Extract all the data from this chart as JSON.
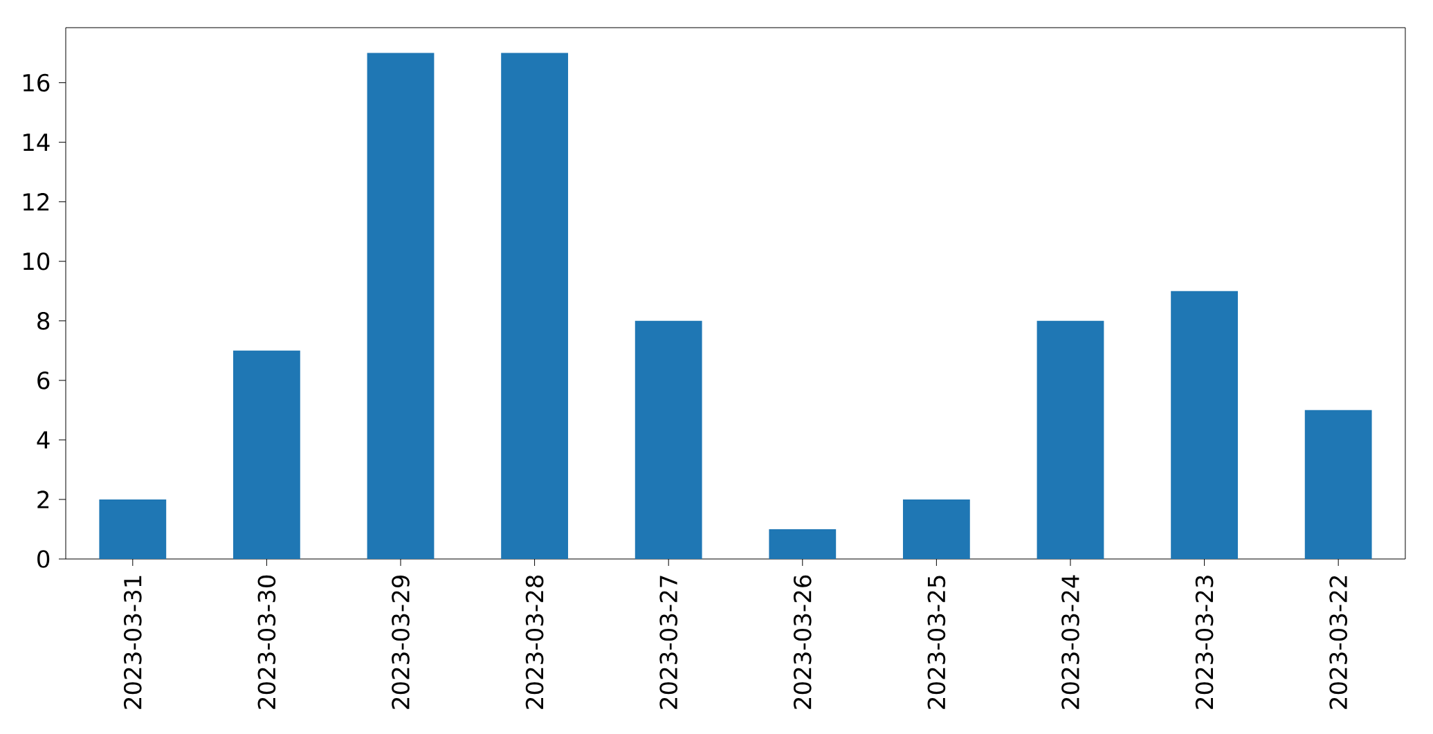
{
  "chart_data": {
    "type": "bar",
    "categories": [
      "2023-03-31",
      "2023-03-30",
      "2023-03-29",
      "2023-03-28",
      "2023-03-27",
      "2023-03-26",
      "2023-03-25",
      "2023-03-24",
      "2023-03-23",
      "2023-03-22"
    ],
    "values": [
      2,
      7,
      17,
      17,
      8,
      1,
      2,
      8,
      9,
      5
    ],
    "color": "#1f77b4",
    "ylim": [
      0,
      17.85
    ],
    "yticks": [
      0,
      2,
      4,
      6,
      8,
      10,
      12,
      14,
      16
    ],
    "grid": false
  }
}
